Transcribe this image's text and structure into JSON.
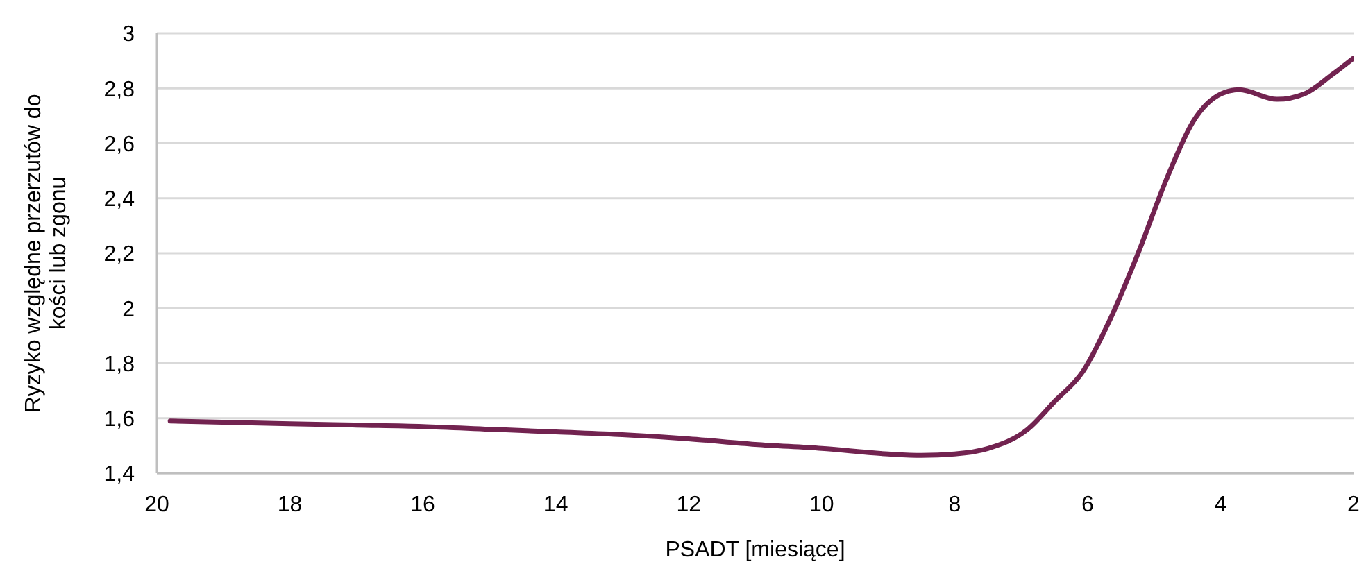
{
  "chart_data": {
    "type": "line",
    "xlabel": "PSADT [miesiące]",
    "ylabel": "Ryzyko względne przerzutów do kości lub zgonu",
    "xlim": [
      20,
      2
    ],
    "xticks": [
      20,
      18,
      16,
      14,
      12,
      10,
      8,
      6,
      4,
      2
    ],
    "ylim": [
      1.4,
      3
    ],
    "yticks": [
      {
        "value": 1.4,
        "label": "1,4"
      },
      {
        "value": 1.6,
        "label": "1,6"
      },
      {
        "value": 1.8,
        "label": "1,8"
      },
      2,
      {
        "value": 2.2,
        "label": "2,2"
      },
      {
        "value": 2.4,
        "label": "2,4"
      },
      {
        "value": 2.6,
        "label": "2,6"
      },
      {
        "value": 2.8,
        "label": "2,8"
      },
      3
    ],
    "grid": "y",
    "legend": false,
    "marker": "none",
    "line_style": "solid",
    "x": [
      19.8,
      18,
      17,
      16,
      15,
      14,
      13,
      12,
      11,
      10,
      9,
      8.5,
      8,
      7.5,
      6.9,
      6.5,
      6.07,
      5.66,
      5.24,
      4.82,
      4.41,
      3.99,
      3.72,
      3.15,
      2.74,
      2.32,
      2
    ],
    "series": [
      {
        "color": "#722350",
        "values": [
          1.59,
          1.58,
          1.575,
          1.57,
          1.56,
          1.55,
          1.54,
          1.525,
          1.505,
          1.49,
          1.47,
          1.465,
          1.47,
          1.49,
          1.56,
          1.66,
          1.77,
          1.96,
          2.2,
          2.465,
          2.68,
          2.78,
          2.795,
          2.76,
          2.78,
          2.85,
          2.91
        ]
      }
    ]
  }
}
